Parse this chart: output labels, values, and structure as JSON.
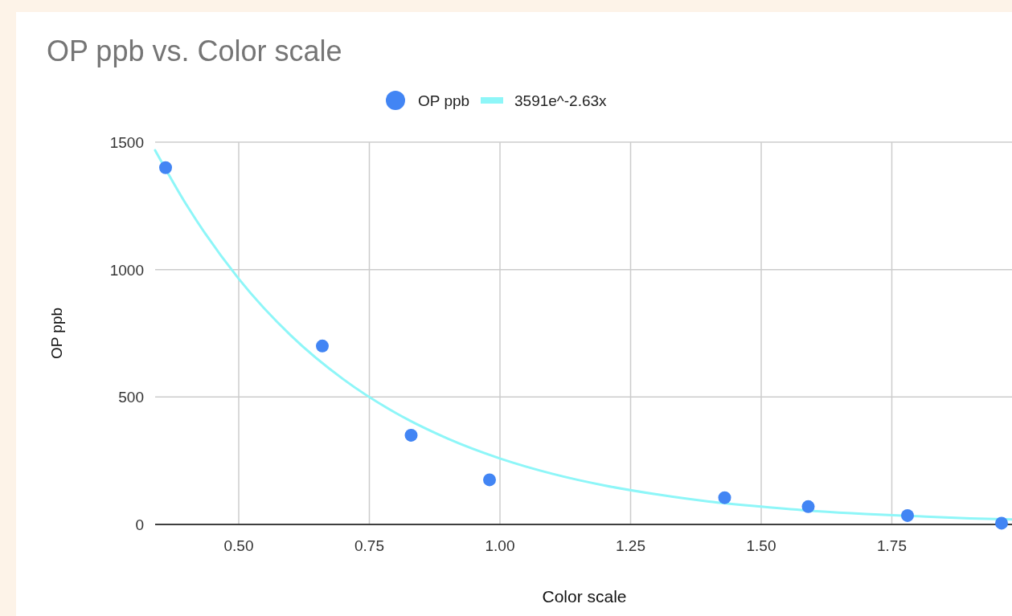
{
  "chart_data": {
    "type": "scatter",
    "title": "OP ppb vs. Color scale",
    "xlabel": "Color scale",
    "ylabel": "OP ppb",
    "xlim": [
      0.34,
      1.98
    ],
    "xticks": [
      {
        "value": 0.5,
        "label": "0.50"
      },
      {
        "value": 0.75,
        "label": "0.75"
      },
      {
        "value": 1,
        "label": "1.00"
      },
      {
        "value": 1.25,
        "label": "1.25"
      },
      {
        "value": 1.5,
        "label": "1.50"
      },
      {
        "value": 1.75,
        "label": "1.75"
      }
    ],
    "ylim": [
      0,
      1500
    ],
    "yticks": [
      0,
      500,
      1000,
      1500
    ],
    "grid": true,
    "legend": "top",
    "marker": "circle",
    "series": [
      {
        "name": "OP ppb",
        "color": "#4285f4",
        "x": [
          0.36,
          0.66,
          0.83,
          0.98,
          1.43,
          1.59,
          1.78,
          1.96
        ],
        "values": [
          1400,
          700,
          350,
          175,
          105,
          70,
          35,
          5
        ]
      },
      {
        "name": "3591e^-2.63x",
        "type": "line",
        "color": "#8ef6f8",
        "marker": "none",
        "x": [
          0.34,
          0.4,
          0.5,
          0.6,
          0.7,
          0.8,
          0.9,
          1.0,
          1.1,
          1.2,
          1.3,
          1.4,
          1.5,
          1.6,
          1.7,
          1.8,
          1.9,
          1.98
        ],
        "values": [
          1468,
          1254,
          964,
          741,
          570,
          438,
          337,
          259,
          199,
          153,
          118,
          90,
          70,
          53,
          41,
          32,
          24,
          20
        ]
      }
    ]
  }
}
